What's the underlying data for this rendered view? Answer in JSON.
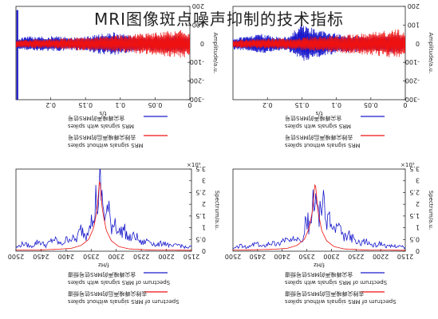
{
  "page": {
    "title": "MRI图像斑点噪声抑制的技术指标"
  },
  "colors": {
    "with_spikes": "#1a1acc",
    "without_spikes": "#ee1111",
    "axis": "#222222"
  },
  "chart_data": [
    {
      "type": "line",
      "panel": "top-left",
      "xlabel": "t/s",
      "ylabel": "Amplitude/a.u.",
      "xlim": [
        0,
        0.25
      ],
      "ylim": [
        -300,
        200
      ],
      "xticks": [
        {
          "v": 0.2,
          "t": "0.2"
        },
        {
          "v": 0.15,
          "t": "0.15"
        },
        {
          "v": 0.1,
          "t": "0.1"
        },
        {
          "v": 0.05,
          "t": "0.05"
        },
        {
          "v": 0,
          "t": "0"
        }
      ],
      "yticks": [
        {
          "v": 200,
          "t": "200"
        },
        {
          "v": 100,
          "t": "100"
        },
        {
          "v": 0,
          "t": "0"
        },
        {
          "v": -100,
          "t": "-100"
        },
        {
          "v": -200,
          "t": "-200"
        },
        {
          "v": -300,
          "t": "-300"
        }
      ],
      "x_reversed": true,
      "series": [
        {
          "name": "含尖峰噪声的MRS信号",
          "name_en": "MRS signals with spikes",
          "color_key": "with_spikes",
          "spikes": [
            {
              "x": 0.248,
              "y": 180
            },
            {
              "x": 0.248,
              "y": -300
            }
          ],
          "points": [
            [
              0.25,
              28
            ],
            [
              0.23,
              40
            ],
            [
              0.21,
              42
            ],
            [
              0.19,
              40
            ],
            [
              0.17,
              36
            ],
            [
              0.15,
              40
            ],
            [
              0.13,
              55
            ],
            [
              0.11,
              62
            ],
            [
              0.09,
              50
            ],
            [
              0.07,
              40
            ],
            [
              0.05,
              38
            ],
            [
              0.03,
              44
            ],
            [
              0.01,
              50
            ],
            [
              0,
              30
            ]
          ]
        },
        {
          "name": "去除尖峰噪声后的MRS信号",
          "name_en": "MRS signals without spikes",
          "color_key": "without_spikes",
          "points": [
            [
              0.25,
              22
            ],
            [
              0.23,
              24
            ],
            [
              0.21,
              26
            ],
            [
              0.19,
              28
            ],
            [
              0.17,
              32
            ],
            [
              0.15,
              36
            ],
            [
              0.13,
              40
            ],
            [
              0.11,
              44
            ],
            [
              0.09,
              50
            ],
            [
              0.07,
              56
            ],
            [
              0.05,
              62
            ],
            [
              0.03,
              70
            ],
            [
              0.01,
              78
            ],
            [
              0,
              60
            ]
          ]
        }
      ]
    },
    {
      "type": "line",
      "panel": "top-right",
      "xlabel": "t/s",
      "ylabel": "Amplitude/a.u.",
      "xlim": [
        0,
        0.25
      ],
      "ylim": [
        -300,
        200
      ],
      "xticks": [
        {
          "v": 0.2,
          "t": "0.2"
        },
        {
          "v": 0.15,
          "t": "0.15"
        },
        {
          "v": 0.1,
          "t": "0.1"
        },
        {
          "v": 0.05,
          "t": "0.05"
        },
        {
          "v": 0,
          "t": "0"
        }
      ],
      "yticks": [
        {
          "v": 200,
          "t": "200"
        },
        {
          "v": 100,
          "t": "100"
        },
        {
          "v": 0,
          "t": "0"
        },
        {
          "v": -100,
          "t": "-100"
        },
        {
          "v": -200,
          "t": "-200"
        },
        {
          "v": -300,
          "t": "-300"
        }
      ],
      "x_reversed": true,
      "series": [
        {
          "name": "含尖峰噪声的MRS信号",
          "name_en": "MRS signals with spikes",
          "color_key": "with_spikes",
          "spikes": [],
          "points": [
            [
              0.25,
              30
            ],
            [
              0.23,
              40
            ],
            [
              0.21,
              55
            ],
            [
              0.19,
              40
            ],
            [
              0.17,
              38
            ],
            [
              0.15,
              110
            ],
            [
              0.13,
              80
            ],
            [
              0.11,
              60
            ],
            [
              0.09,
              50
            ],
            [
              0.07,
              45
            ],
            [
              0.05,
              40
            ],
            [
              0.03,
              45
            ],
            [
              0.01,
              55
            ],
            [
              0,
              35
            ]
          ]
        },
        {
          "name": "去除尖峰噪声后的MRS信号",
          "name_en": "MRS signals without spikes",
          "color_key": "without_spikes",
          "points": [
            [
              0.25,
              22
            ],
            [
              0.23,
              24
            ],
            [
              0.21,
              26
            ],
            [
              0.19,
              28
            ],
            [
              0.17,
              32
            ],
            [
              0.15,
              36
            ],
            [
              0.13,
              40
            ],
            [
              0.11,
              44
            ],
            [
              0.09,
              50
            ],
            [
              0.07,
              56
            ],
            [
              0.05,
              62
            ],
            [
              0.03,
              70
            ],
            [
              0.01,
              78
            ],
            [
              0,
              60
            ]
          ]
        }
      ]
    },
    {
      "type": "line",
      "panel": "bottom-left",
      "xlabel": "f/Hz",
      "ylabel": "Spectrum/a.u.",
      "y_multiplier": "×10⁵",
      "xlim": [
        2150,
        2500
      ],
      "ylim": [
        0,
        3.5
      ],
      "xticks": [
        {
          "v": 2500,
          "t": "2500"
        },
        {
          "v": 2450,
          "t": "2450"
        },
        {
          "v": 2400,
          "t": "2400"
        },
        {
          "v": 2350,
          "t": "2350"
        },
        {
          "v": 2300,
          "t": "2300"
        },
        {
          "v": 2250,
          "t": "2250"
        },
        {
          "v": 2200,
          "t": "2200"
        },
        {
          "v": 2150,
          "t": "2150"
        }
      ],
      "yticks": [
        {
          "v": 3.5,
          "t": "3.5"
        },
        {
          "v": 3,
          "t": "3"
        },
        {
          "v": 2.5,
          "t": "2.5"
        },
        {
          "v": 2,
          "t": "2"
        },
        {
          "v": 1.5,
          "t": "1.5"
        },
        {
          "v": 1,
          "t": "1"
        },
        {
          "v": 0.5,
          "t": "0.5"
        },
        {
          "v": 0,
          "t": "0"
        }
      ],
      "x_reversed": true,
      "series": [
        {
          "name": "含尖峰噪声的MRS信号频谱",
          "name_en": "Spectrum of MRS signals with spikes",
          "color_key": "with_spikes",
          "points": [
            [
              2500,
              0.15
            ],
            [
              2485,
              0.35
            ],
            [
              2470,
              0.2
            ],
            [
              2455,
              0.45
            ],
            [
              2440,
              0.25
            ],
            [
              2425,
              0.55
            ],
            [
              2410,
              0.3
            ],
            [
              2395,
              0.6
            ],
            [
              2380,
              0.5
            ],
            [
              2370,
              1.0
            ],
            [
              2360,
              0.7
            ],
            [
              2352,
              1.6
            ],
            [
              2346,
              1.1
            ],
            [
              2340,
              2.5
            ],
            [
              2336,
              1.8
            ],
            [
              2332,
              3.1
            ],
            [
              2328,
              2.2
            ],
            [
              2322,
              1.5
            ],
            [
              2316,
              1.9
            ],
            [
              2310,
              1.1
            ],
            [
              2302,
              1.4
            ],
            [
              2295,
              0.8
            ],
            [
              2285,
              1.0
            ],
            [
              2275,
              0.55
            ],
            [
              2262,
              0.7
            ],
            [
              2250,
              0.35
            ],
            [
              2235,
              0.5
            ],
            [
              2220,
              0.25
            ],
            [
              2205,
              0.4
            ],
            [
              2190,
              0.2
            ],
            [
              2175,
              0.3
            ],
            [
              2160,
              0.15
            ],
            [
              2150,
              0.2
            ]
          ]
        },
        {
          "name": "去除尖峰噪声后的MRS信号频谱",
          "name_en": "Spectrum of MRS signals without spikes",
          "color_key": "without_spikes",
          "points": [
            [
              2500,
              0.05
            ],
            [
              2460,
              0.05
            ],
            [
              2420,
              0.08
            ],
            [
              2390,
              0.12
            ],
            [
              2370,
              0.25
            ],
            [
              2355,
              0.5
            ],
            [
              2345,
              1.0
            ],
            [
              2338,
              1.8
            ],
            [
              2333,
              3.15
            ],
            [
              2328,
              1.8
            ],
            [
              2320,
              0.9
            ],
            [
              2310,
              0.45
            ],
            [
              2295,
              0.2
            ],
            [
              2275,
              0.1
            ],
            [
              2240,
              0.06
            ],
            [
              2200,
              0.05
            ],
            [
              2150,
              0.04
            ]
          ]
        }
      ]
    },
    {
      "type": "line",
      "panel": "bottom-right",
      "xlabel": "f/Hz",
      "ylabel": "Spectrum/a.u.",
      "y_multiplier": "×10⁵",
      "xlim": [
        2150,
        2500
      ],
      "ylim": [
        0,
        3.5
      ],
      "xticks": [
        {
          "v": 2500,
          "t": "2500"
        },
        {
          "v": 2450,
          "t": "2450"
        },
        {
          "v": 2400,
          "t": "2400"
        },
        {
          "v": 2350,
          "t": "2350"
        },
        {
          "v": 2300,
          "t": "2300"
        },
        {
          "v": 2250,
          "t": "2250"
        },
        {
          "v": 2200,
          "t": "2200"
        },
        {
          "v": 2150,
          "t": "2150"
        }
      ],
      "yticks": [
        {
          "v": 3.5,
          "t": "3.5"
        },
        {
          "v": 3,
          "t": "3"
        },
        {
          "v": 2.5,
          "t": "2.5"
        },
        {
          "v": 2,
          "t": "2"
        },
        {
          "v": 1.5,
          "t": "1.5"
        },
        {
          "v": 1,
          "t": "1"
        },
        {
          "v": 0.5,
          "t": "0.5"
        },
        {
          "v": 0,
          "t": "0"
        }
      ],
      "x_reversed": true,
      "series": [
        {
          "name": "含尖峰噪声的MRS信号频谱",
          "name_en": "Spectrum of MRS signals with spikes",
          "color_key": "with_spikes",
          "points": [
            [
              2500,
              0.1
            ],
            [
              2485,
              0.25
            ],
            [
              2470,
              0.15
            ],
            [
              2455,
              0.35
            ],
            [
              2440,
              0.2
            ],
            [
              2425,
              0.4
            ],
            [
              2410,
              0.3
            ],
            [
              2395,
              0.55
            ],
            [
              2380,
              0.4
            ],
            [
              2368,
              0.8
            ],
            [
              2358,
              0.6
            ],
            [
              2350,
              1.5
            ],
            [
              2344,
              1.0
            ],
            [
              2338,
              2.2
            ],
            [
              2334,
              1.6
            ],
            [
              2330,
              2.6
            ],
            [
              2325,
              1.7
            ],
            [
              2318,
              2.4
            ],
            [
              2312,
              1.3
            ],
            [
              2305,
              1.6
            ],
            [
              2297,
              0.9
            ],
            [
              2287,
              1.1
            ],
            [
              2276,
              0.6
            ],
            [
              2262,
              0.7
            ],
            [
              2248,
              0.35
            ],
            [
              2232,
              0.45
            ],
            [
              2215,
              0.25
            ],
            [
              2200,
              0.35
            ],
            [
              2185,
              0.2
            ],
            [
              2165,
              0.25
            ],
            [
              2150,
              0.15
            ]
          ]
        },
        {
          "name": "去除尖峰噪声后的MRS信号频谱",
          "name_en": "Spectrum of MRS signals without spikes",
          "color_key": "without_spikes",
          "points": [
            [
              2500,
              0.05
            ],
            [
              2460,
              0.06
            ],
            [
              2420,
              0.08
            ],
            [
              2390,
              0.12
            ],
            [
              2370,
              0.25
            ],
            [
              2355,
              0.5
            ],
            [
              2345,
              1.0
            ],
            [
              2338,
              1.8
            ],
            [
              2333,
              3.0
            ],
            [
              2328,
              1.8
            ],
            [
              2320,
              0.9
            ],
            [
              2310,
              0.45
            ],
            [
              2295,
              0.2
            ],
            [
              2275,
              0.1
            ],
            [
              2240,
              0.06
            ],
            [
              2200,
              0.05
            ],
            [
              2150,
              0.04
            ]
          ]
        }
      ]
    }
  ]
}
